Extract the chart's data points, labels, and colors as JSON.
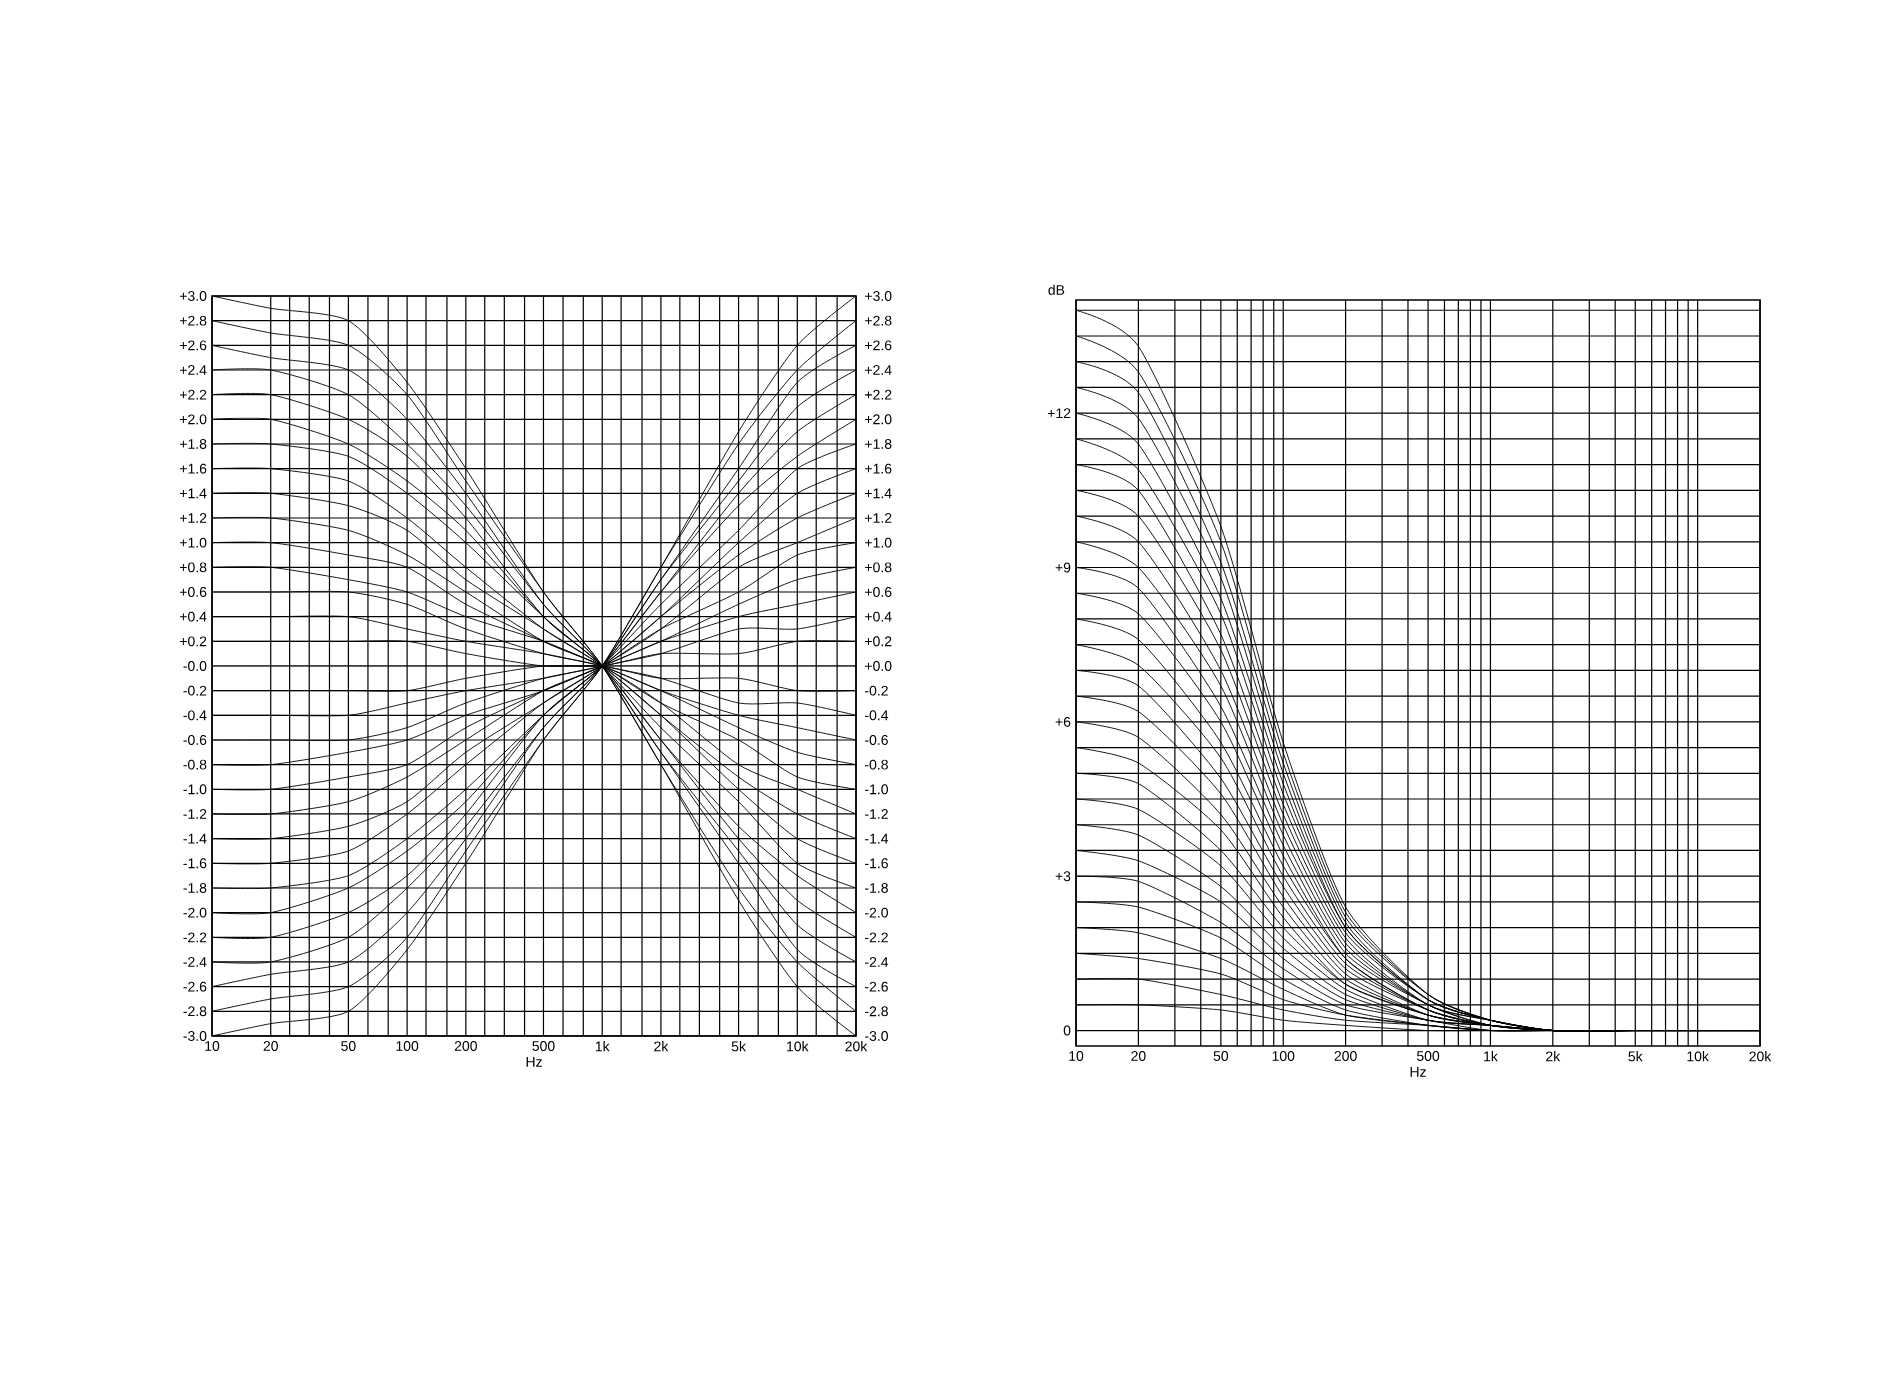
{
  "chart_data": [
    {
      "type": "line",
      "xlabel": "Hz",
      "color": "#000000",
      "log": "x",
      "grid": true,
      "marker": "none",
      "x": [
        10,
        20,
        50,
        100,
        200,
        500,
        1000,
        2000,
        5000,
        10000,
        20000
      ],
      "xlim": [
        10,
        20000
      ],
      "xticks": [
        10,
        20,
        {
          "value": 25,
          "label": null
        },
        {
          "value": 31.5,
          "label": null
        },
        {
          "value": 40,
          "label": null
        },
        50,
        {
          "value": 63,
          "label": null
        },
        {
          "value": 80,
          "label": null
        },
        100,
        {
          "value": 125,
          "label": null
        },
        {
          "value": 160,
          "label": null
        },
        200,
        {
          "value": 250,
          "label": null
        },
        {
          "value": 315,
          "label": null
        },
        {
          "value": 400,
          "label": null
        },
        500,
        {
          "value": 630,
          "label": null
        },
        {
          "value": 800,
          "label": null
        },
        {
          "value": 1000,
          "label": "1k"
        },
        {
          "value": 1250,
          "label": null
        },
        {
          "value": 1600,
          "label": null
        },
        {
          "value": 2000,
          "label": "2k"
        },
        {
          "value": 2500,
          "label": null
        },
        {
          "value": 3150,
          "label": null
        },
        {
          "value": 4000,
          "label": null
        },
        {
          "value": 5000,
          "label": "5k"
        },
        {
          "value": 6300,
          "label": null
        },
        {
          "value": 8000,
          "label": null
        },
        {
          "value": 10000,
          "label": "10k"
        },
        {
          "value": 12500,
          "label": null
        },
        {
          "value": 16000,
          "label": null
        },
        {
          "value": 20000,
          "label": "20k"
        }
      ],
      "ylim": [
        -3.0,
        3.0
      ],
      "yticks": [
        {
          "value": -3.0,
          "label": "-3.0"
        },
        {
          "value": -2.8,
          "label": "-2.8"
        },
        {
          "value": -2.6,
          "label": "-2.6"
        },
        {
          "value": -2.4,
          "label": "-2.4"
        },
        {
          "value": -2.2,
          "label": "-2.2"
        },
        {
          "value": -2.0,
          "label": "-2.0"
        },
        {
          "value": -1.8,
          "label": "-1.8"
        },
        {
          "value": -1.6,
          "label": "-1.6"
        },
        {
          "value": -1.4,
          "label": "-1.4"
        },
        {
          "value": -1.2,
          "label": "-1.2"
        },
        {
          "value": -1.0,
          "label": "-1.0"
        },
        {
          "value": -0.8,
          "label": "-0.8"
        },
        {
          "value": -0.6,
          "label": "-0.6"
        },
        {
          "value": -0.4,
          "label": "-0.4"
        },
        {
          "value": -0.2,
          "label": "-0.2"
        },
        {
          "value": 0,
          "label": "-0.0"
        },
        {
          "value": 0.2,
          "label": "+0.2"
        },
        {
          "value": 0.4,
          "label": "+0.4"
        },
        {
          "value": 0.6,
          "label": "+0.6"
        },
        {
          "value": 0.8,
          "label": "+0.8"
        },
        {
          "value": 1.0,
          "label": "+1.0"
        },
        {
          "value": 1.2,
          "label": "+1.2"
        },
        {
          "value": 1.4,
          "label": "+1.4"
        },
        {
          "value": 1.6,
          "label": "+1.6"
        },
        {
          "value": 1.8,
          "label": "+1.8"
        },
        {
          "value": 2.0,
          "label": "+2.0"
        },
        {
          "value": 2.2,
          "label": "+2.2"
        },
        {
          "value": 2.4,
          "label": "+2.4"
        },
        {
          "value": 2.6,
          "label": "+2.6"
        },
        {
          "value": 2.8,
          "label": "+2.8"
        },
        {
          "value": 3.0,
          "label": "+3.0"
        }
      ],
      "y2lim": [
        -3.0,
        3.0
      ],
      "y2ticks": [
        {
          "value": -3.0,
          "label": "-3.0"
        },
        {
          "value": -2.8,
          "label": "-2.8"
        },
        {
          "value": -2.6,
          "label": "-2.6"
        },
        {
          "value": -2.4,
          "label": "-2.4"
        },
        {
          "value": -2.2,
          "label": "-2.2"
        },
        {
          "value": -2.0,
          "label": "-2.0"
        },
        {
          "value": -1.8,
          "label": "-1.8"
        },
        {
          "value": -1.6,
          "label": "-1.6"
        },
        {
          "value": -1.4,
          "label": "-1.4"
        },
        {
          "value": -1.2,
          "label": "-1.2"
        },
        {
          "value": -1.0,
          "label": "-1.0"
        },
        {
          "value": -0.8,
          "label": "-0.8"
        },
        {
          "value": -0.6,
          "label": "-0.6"
        },
        {
          "value": -0.4,
          "label": "-0.4"
        },
        {
          "value": -0.2,
          "label": "-0.2"
        },
        {
          "value": 0,
          "label": "+0.0"
        },
        {
          "value": 0.2,
          "label": "+0.2"
        },
        {
          "value": 0.4,
          "label": "+0.4"
        },
        {
          "value": 0.6,
          "label": "+0.6"
        },
        {
          "value": 0.8,
          "label": "+0.8"
        },
        {
          "value": 1.0,
          "label": "+1.0"
        },
        {
          "value": 1.2,
          "label": "+1.2"
        },
        {
          "value": 1.4,
          "label": "+1.4"
        },
        {
          "value": 1.6,
          "label": "+1.6"
        },
        {
          "value": 1.8,
          "label": "+1.8"
        },
        {
          "value": 2.0,
          "label": "+2.0"
        },
        {
          "value": 2.2,
          "label": "+2.2"
        },
        {
          "value": 2.4,
          "label": "+2.4"
        },
        {
          "value": 2.6,
          "label": "+2.6"
        },
        {
          "value": 2.8,
          "label": "+2.8"
        },
        {
          "value": 3.0,
          "label": "+3.0"
        }
      ],
      "series": [
        {
          "values": [
            3.0,
            2.9,
            2.8,
            2.3,
            1.6,
            0.6,
            0,
            -0.8,
            -1.9,
            -2.6,
            -3.0
          ]
        },
        {
          "values": [
            2.8,
            2.7,
            2.6,
            2.2,
            1.5,
            0.6,
            0,
            -0.8,
            -1.8,
            -2.4,
            -2.8
          ]
        },
        {
          "values": [
            2.6,
            2.5,
            2.4,
            2.0,
            1.4,
            0.5,
            0,
            -0.7,
            -1.6,
            -2.3,
            -2.6
          ]
        },
        {
          "values": [
            2.4,
            2.4,
            2.2,
            1.8,
            1.3,
            0.5,
            0,
            -0.7,
            -1.5,
            -2.1,
            -2.4
          ]
        },
        {
          "values": [
            2.2,
            2.2,
            2.0,
            1.7,
            1.2,
            0.4,
            0,
            -0.6,
            -1.4,
            -1.9,
            -2.2
          ]
        },
        {
          "values": [
            2.0,
            2.0,
            1.8,
            1.5,
            1.1,
            0.4,
            0,
            -0.6,
            -1.3,
            -1.7,
            -2.0
          ]
        },
        {
          "values": [
            1.8,
            1.8,
            1.7,
            1.4,
            1.0,
            0.4,
            0,
            -0.5,
            -1.1,
            -1.6,
            -1.8
          ]
        },
        {
          "values": [
            1.6,
            1.6,
            1.5,
            1.2,
            0.8,
            0.3,
            0,
            -0.4,
            -1.0,
            -1.4,
            -1.6
          ]
        },
        {
          "values": [
            1.4,
            1.4,
            1.3,
            1.1,
            0.7,
            0.3,
            0,
            -0.4,
            -0.9,
            -1.2,
            -1.4
          ]
        },
        {
          "values": [
            1.2,
            1.2,
            1.1,
            0.9,
            0.6,
            0.2,
            0,
            -0.3,
            -0.8,
            -1.0,
            -1.2
          ]
        },
        {
          "values": [
            1.0,
            1.0,
            0.9,
            0.8,
            0.5,
            0.2,
            0,
            -0.3,
            -0.6,
            -0.9,
            -1.0
          ]
        },
        {
          "values": [
            0.8,
            0.8,
            0.7,
            0.6,
            0.4,
            0.2,
            0,
            -0.2,
            -0.5,
            -0.7,
            -0.8
          ]
        },
        {
          "values": [
            0.6,
            0.6,
            0.6,
            0.5,
            0.3,
            0.1,
            0,
            -0.2,
            -0.4,
            -0.5,
            -0.6
          ]
        },
        {
          "values": [
            0.4,
            0.4,
            0.4,
            0.3,
            0.2,
            0.1,
            0,
            -0.1,
            -0.3,
            -0.3,
            -0.4
          ]
        },
        {
          "values": [
            0.2,
            0.2,
            0.2,
            0.2,
            0.1,
            0.0,
            0,
            -0.1,
            -0.1,
            -0.2,
            -0.2
          ]
        },
        {
          "values": [
            0,
            0,
            0,
            0,
            0,
            0,
            0,
            0,
            0,
            0,
            0
          ]
        },
        {
          "values": [
            -0.2,
            -0.2,
            -0.2,
            -0.2,
            -0.1,
            0.0,
            0,
            0.1,
            0.1,
            0.2,
            0.2
          ]
        },
        {
          "values": [
            -0.4,
            -0.4,
            -0.4,
            -0.3,
            -0.2,
            -0.1,
            0,
            0.1,
            0.3,
            0.3,
            0.4
          ]
        },
        {
          "values": [
            -0.6,
            -0.6,
            -0.6,
            -0.5,
            -0.3,
            -0.1,
            0,
            0.2,
            0.4,
            0.5,
            0.6
          ]
        },
        {
          "values": [
            -0.8,
            -0.8,
            -0.7,
            -0.6,
            -0.4,
            -0.2,
            0,
            0.2,
            0.5,
            0.7,
            0.8
          ]
        },
        {
          "values": [
            -1.0,
            -1.0,
            -0.9,
            -0.8,
            -0.5,
            -0.2,
            0,
            0.3,
            0.6,
            0.9,
            1.0
          ]
        },
        {
          "values": [
            -1.2,
            -1.2,
            -1.1,
            -0.9,
            -0.6,
            -0.2,
            0,
            0.3,
            0.8,
            1.0,
            1.2
          ]
        },
        {
          "values": [
            -1.4,
            -1.4,
            -1.3,
            -1.1,
            -0.7,
            -0.3,
            0,
            0.4,
            0.9,
            1.2,
            1.4
          ]
        },
        {
          "values": [
            -1.6,
            -1.6,
            -1.5,
            -1.2,
            -0.8,
            -0.3,
            0,
            0.4,
            1.0,
            1.4,
            1.6
          ]
        },
        {
          "values": [
            -1.8,
            -1.8,
            -1.7,
            -1.4,
            -1.0,
            -0.4,
            0,
            0.5,
            1.1,
            1.6,
            1.8
          ]
        },
        {
          "values": [
            -2.0,
            -2.0,
            -1.8,
            -1.5,
            -1.1,
            -0.4,
            0,
            0.6,
            1.3,
            1.7,
            2.0
          ]
        },
        {
          "values": [
            -2.2,
            -2.2,
            -2.0,
            -1.7,
            -1.2,
            -0.4,
            0,
            0.6,
            1.4,
            1.9,
            2.2
          ]
        },
        {
          "values": [
            -2.4,
            -2.4,
            -2.2,
            -1.8,
            -1.3,
            -0.5,
            0,
            0.7,
            1.5,
            2.1,
            2.4
          ]
        },
        {
          "values": [
            -2.6,
            -2.5,
            -2.4,
            -2.0,
            -1.4,
            -0.5,
            0,
            0.7,
            1.6,
            2.3,
            2.6
          ]
        },
        {
          "values": [
            -2.8,
            -2.7,
            -2.6,
            -2.2,
            -1.5,
            -0.6,
            0,
            0.8,
            1.8,
            2.4,
            2.8
          ]
        },
        {
          "values": [
            -3.0,
            -2.9,
            -2.8,
            -2.3,
            -1.6,
            -0.6,
            0,
            0.8,
            1.9,
            2.6,
            3.0
          ]
        }
      ]
    },
    {
      "type": "line",
      "xlabel": "Hz",
      "ylabel": "dB",
      "color": "#000000",
      "log": "x",
      "grid": true,
      "marker": "none",
      "x": [
        10,
        20,
        50,
        100,
        200,
        500,
        1000,
        2000,
        5000,
        10000,
        20000
      ],
      "xlim": [
        10,
        20000
      ],
      "xticks": [
        10,
        20,
        {
          "value": 30,
          "label": null
        },
        {
          "value": 40,
          "label": null
        },
        50,
        {
          "value": 60,
          "label": null
        },
        {
          "value": 70,
          "label": null
        },
        {
          "value": 80,
          "label": null
        },
        {
          "value": 90,
          "label": null
        },
        100,
        200,
        {
          "value": 300,
          "label": null
        },
        {
          "value": 400,
          "label": null
        },
        500,
        {
          "value": 600,
          "label": null
        },
        {
          "value": 700,
          "label": null
        },
        {
          "value": 800,
          "label": null
        },
        {
          "value": 900,
          "label": null
        },
        {
          "value": 1000,
          "label": "1k"
        },
        {
          "value": 2000,
          "label": "2k"
        },
        {
          "value": 3000,
          "label": null
        },
        {
          "value": 4000,
          "label": null
        },
        {
          "value": 5000,
          "label": "5k"
        },
        {
          "value": 6000,
          "label": null
        },
        {
          "value": 7000,
          "label": null
        },
        {
          "value": 8000,
          "label": null
        },
        {
          "value": 9000,
          "label": null
        },
        {
          "value": 10000,
          "label": "10k"
        },
        {
          "value": 20000,
          "label": "20k"
        }
      ],
      "ylim": [
        -0.3,
        14.2
      ],
      "yticks": [
        0,
        {
          "value": 0.5,
          "label": null
        },
        {
          "value": 1,
          "label": null
        },
        {
          "value": 1.5,
          "label": null
        },
        {
          "value": 2,
          "label": null
        },
        {
          "value": 2.5,
          "label": null
        },
        {
          "value": 3,
          "label": "+3"
        },
        {
          "value": 3.5,
          "label": null
        },
        {
          "value": 4,
          "label": null
        },
        {
          "value": 4.5,
          "label": null
        },
        {
          "value": 5,
          "label": null
        },
        {
          "value": 5.5,
          "label": null
        },
        {
          "value": 6,
          "label": "+6"
        },
        {
          "value": 6.5,
          "label": null
        },
        {
          "value": 7,
          "label": null
        },
        {
          "value": 7.5,
          "label": null
        },
        {
          "value": 8,
          "label": null
        },
        {
          "value": 8.5,
          "label": null
        },
        {
          "value": 9,
          "label": "+9"
        },
        {
          "value": 9.5,
          "label": null
        },
        {
          "value": 10,
          "label": null
        },
        {
          "value": 10.5,
          "label": null
        },
        {
          "value": 11,
          "label": null
        },
        {
          "value": 11.5,
          "label": null
        },
        {
          "value": 12,
          "label": "+12"
        },
        {
          "value": 12.5,
          "label": null
        },
        {
          "value": 13,
          "label": null
        },
        {
          "value": 13.5,
          "label": null
        },
        {
          "value": 14,
          "label": null
        }
      ],
      "series": [
        {
          "values": [
            14,
            13.3,
            9.8,
            5.6,
            2.4,
            0.7,
            0.2,
            0,
            0,
            0,
            0
          ]
        },
        {
          "values": [
            13.5,
            12.8,
            9.5,
            5.4,
            2.3,
            0.7,
            0.2,
            0,
            0,
            0,
            0
          ]
        },
        {
          "values": [
            13,
            12.4,
            9.1,
            5.2,
            2.2,
            0.7,
            0.2,
            0,
            0,
            0,
            0
          ]
        },
        {
          "values": [
            12.5,
            11.9,
            8.8,
            5.0,
            2.1,
            0.6,
            0.2,
            0,
            0,
            0,
            0
          ]
        },
        {
          "values": [
            12,
            11.4,
            8.4,
            4.8,
            2.0,
            0.6,
            0.2,
            0,
            0,
            0,
            0
          ]
        },
        {
          "values": [
            11.5,
            10.9,
            8.1,
            4.6,
            2.0,
            0.6,
            0.2,
            0,
            0,
            0,
            0
          ]
        },
        {
          "values": [
            11,
            10.5,
            7.7,
            4.4,
            1.9,
            0.6,
            0.2,
            0,
            0,
            0,
            0
          ]
        },
        {
          "values": [
            10.5,
            10.0,
            7.4,
            4.2,
            1.8,
            0.5,
            0.2,
            0,
            0,
            0,
            0
          ]
        },
        {
          "values": [
            10,
            9.5,
            7.0,
            4.0,
            1.7,
            0.5,
            0.2,
            0,
            0,
            0,
            0
          ]
        },
        {
          "values": [
            9.5,
            9.0,
            6.7,
            3.8,
            1.6,
            0.5,
            0.1,
            0,
            0,
            0,
            0
          ]
        },
        {
          "values": [
            9,
            8.6,
            6.3,
            3.6,
            1.5,
            0.5,
            0.1,
            0,
            0,
            0,
            0
          ]
        },
        {
          "values": [
            8.5,
            8.1,
            6.0,
            3.4,
            1.4,
            0.4,
            0.1,
            0,
            0,
            0,
            0
          ]
        },
        {
          "values": [
            8,
            7.6,
            5.6,
            3.2,
            1.4,
            0.4,
            0.1,
            0,
            0,
            0,
            0
          ]
        },
        {
          "values": [
            7.5,
            7.1,
            5.3,
            3.0,
            1.3,
            0.4,
            0.1,
            0,
            0,
            0,
            0
          ]
        },
        {
          "values": [
            7,
            6.7,
            4.9,
            2.8,
            1.2,
            0.4,
            0.1,
            0,
            0,
            0,
            0
          ]
        },
        {
          "values": [
            6.5,
            6.2,
            4.6,
            2.6,
            1.1,
            0.3,
            0.1,
            0,
            0,
            0,
            0
          ]
        },
        {
          "values": [
            6,
            5.7,
            4.2,
            2.4,
            1.0,
            0.3,
            0.1,
            0,
            0,
            0,
            0
          ]
        },
        {
          "values": [
            5.5,
            5.2,
            3.9,
            2.2,
            0.9,
            0.3,
            0.1,
            0,
            0,
            0,
            0
          ]
        },
        {
          "values": [
            5,
            4.8,
            3.5,
            2.0,
            0.9,
            0.3,
            0.1,
            0,
            0,
            0,
            0
          ]
        },
        {
          "values": [
            4.5,
            4.3,
            3.2,
            1.8,
            0.8,
            0.2,
            0.1,
            0,
            0,
            0,
            0
          ]
        },
        {
          "values": [
            4,
            3.8,
            2.8,
            1.6,
            0.7,
            0.2,
            0.1,
            0,
            0,
            0,
            0
          ]
        },
        {
          "values": [
            3.5,
            3.3,
            2.5,
            1.4,
            0.6,
            0.2,
            0.1,
            0,
            0,
            0,
            0
          ]
        },
        {
          "values": [
            3,
            2.9,
            2.1,
            1.2,
            0.5,
            0.2,
            0,
            0,
            0,
            0,
            0
          ]
        },
        {
          "values": [
            2.5,
            2.4,
            1.8,
            1.0,
            0.4,
            0.1,
            0,
            0,
            0,
            0,
            0
          ]
        },
        {
          "values": [
            2,
            1.9,
            1.4,
            0.8,
            0.3,
            0.1,
            0,
            0,
            0,
            0,
            0
          ]
        },
        {
          "values": [
            1.5,
            1.4,
            1.1,
            0.6,
            0.3,
            0.1,
            0,
            0,
            0,
            0,
            0
          ]
        },
        {
          "values": [
            1,
            1.0,
            0.7,
            0.4,
            0.2,
            0.1,
            0,
            0,
            0,
            0,
            0
          ]
        },
        {
          "values": [
            0.5,
            0.5,
            0.4,
            0.2,
            0.1,
            0.0,
            0,
            0,
            0,
            0,
            0
          ]
        }
      ]
    }
  ]
}
